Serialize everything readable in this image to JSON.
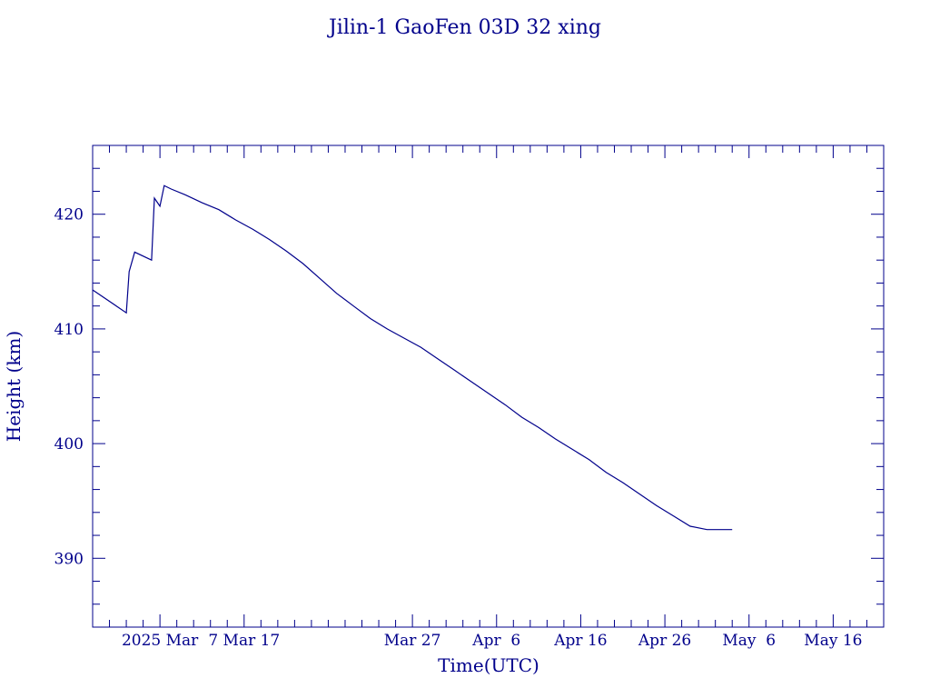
{
  "chart_data": {
    "type": "line",
    "title": "Jilin-1 GaoFen 03D 32 xing",
    "xlabel": "Time(UTC)",
    "ylabel": "Height (km)",
    "color": "#00008b",
    "xlim": [
      "2025-02-17",
      "2025-05-22"
    ],
    "ylim": [
      384,
      426
    ],
    "y_ticks": [
      390,
      400,
      410,
      420
    ],
    "x_ticks": [
      {
        "date": "2025-02-25",
        "label": "2025 Mar"
      },
      {
        "date": "2025-03-07",
        "label": "7 Mar 17"
      },
      {
        "date": "2025-03-27",
        "label": "Mar 27"
      },
      {
        "date": "2025-04-06",
        "label": "Apr  6"
      },
      {
        "date": "2025-04-16",
        "label": "Apr 16"
      },
      {
        "date": "2025-04-26",
        "label": "Apr 26"
      },
      {
        "date": "2025-05-06",
        "label": "May  6"
      },
      {
        "date": "2025-05-16",
        "label": "May 16"
      }
    ],
    "grid": false,
    "series": [
      {
        "x": [
          "2025-02-17",
          "2025-02-21",
          "2025-02-21T08",
          "2025-02-22",
          "2025-02-24",
          "2025-02-24T08",
          "2025-02-25",
          "2025-02-25T12",
          "2025-02-26T08",
          "2025-02-28",
          "2025-03-02",
          "2025-03-04",
          "2025-03-06",
          "2025-03-08",
          "2025-03-10",
          "2025-03-12",
          "2025-03-14",
          "2025-03-16",
          "2025-03-18",
          "2025-03-20",
          "2025-03-22",
          "2025-03-24",
          "2025-03-26",
          "2025-03-28",
          "2025-03-30",
          "2025-04-01",
          "2025-04-03",
          "2025-04-05",
          "2025-04-07",
          "2025-04-09",
          "2025-04-11",
          "2025-04-13",
          "2025-04-15",
          "2025-04-17",
          "2025-04-19",
          "2025-04-21",
          "2025-04-23",
          "2025-04-25",
          "2025-04-27",
          "2025-04-29",
          "2025-05-01",
          "2025-05-03",
          "2025-05-04"
        ],
        "y": [
          413.4,
          411.4,
          415.0,
          416.7,
          416.0,
          421.4,
          420.7,
          422.5,
          422.2,
          421.7,
          421.0,
          420.4,
          419.5,
          418.7,
          417.8,
          416.8,
          415.7,
          414.4,
          413.1,
          412.0,
          410.9,
          410.0,
          409.2,
          408.4,
          407.4,
          406.4,
          405.4,
          404.4,
          403.4,
          402.3,
          401.4,
          400.4,
          399.5,
          398.6,
          397.5,
          396.6,
          395.6,
          394.6,
          393.7,
          392.8,
          392.5,
          392.5,
          392.5
        ]
      }
    ]
  }
}
